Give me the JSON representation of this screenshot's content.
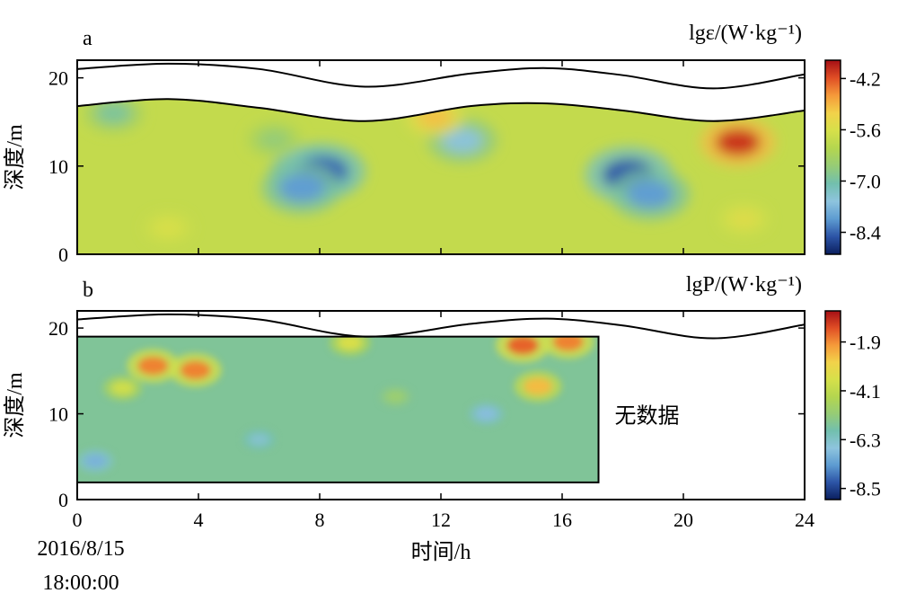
{
  "chart_data": [
    {
      "type": "heatmap",
      "panel_label": "a",
      "unit_label": "lgε/(W·kg⁻¹)",
      "ylabel": "深度/m",
      "xlim": [
        0,
        24
      ],
      "ylim": [
        0,
        22
      ],
      "xticks": [
        "0",
        "4",
        "8",
        "12",
        "16",
        "20",
        "24"
      ],
      "yticks": [
        "0",
        "10",
        "20"
      ],
      "colorbar": {
        "range": [
          -9,
          -3.7
        ],
        "ticks": [
          "-4.2",
          "-5.6",
          "-7.0",
          "-8.4"
        ],
        "tick_values": [
          -4.2,
          -5.6,
          -7.0,
          -8.4
        ]
      },
      "surface_elevation": {
        "x": [
          0,
          3,
          6,
          9.5,
          13,
          15.5,
          18,
          21,
          24
        ],
        "y": [
          21,
          21.6,
          21,
          19,
          20.5,
          21.1,
          20.3,
          18.8,
          20.4
        ]
      },
      "bottom_boundary": {
        "x": [
          0,
          3,
          6,
          9.5,
          13,
          15.5,
          18,
          21,
          24
        ],
        "y": [
          16.8,
          17.6,
          16.6,
          15.1,
          16.8,
          17.1,
          16.3,
          15.1,
          16.3
        ]
      },
      "background_value": -5.9,
      "features": [
        {
          "x": 7.7,
          "y": 9,
          "value": -8.2
        },
        {
          "x": 8.1,
          "y": 9.4,
          "value": -8.4
        },
        {
          "x": 7.4,
          "y": 7.5,
          "value": -8.0
        },
        {
          "x": 18.2,
          "y": 9,
          "value": -8.5
        },
        {
          "x": 18.9,
          "y": 6.8,
          "value": -8.0
        },
        {
          "x": 21.8,
          "y": 12.7,
          "value": -4.0
        },
        {
          "x": 12.7,
          "y": 12.9,
          "value": -7.5
        },
        {
          "x": 1.2,
          "y": 16,
          "value": -6.9
        },
        {
          "x": 11.8,
          "y": 15.5,
          "value": -5.0
        },
        {
          "x": 6.5,
          "y": 13,
          "value": -6.6
        },
        {
          "x": 22,
          "y": 4,
          "value": -5.5
        },
        {
          "x": 3,
          "y": 3,
          "value": -5.6
        }
      ]
    },
    {
      "type": "heatmap",
      "panel_label": "b",
      "unit_label": "lgP/(W·kg⁻¹)",
      "ylabel": "深度/m",
      "xlabel": "时间/h",
      "xlim": [
        0,
        24
      ],
      "ylim": [
        0,
        22
      ],
      "xticks": [
        "0",
        "4",
        "8",
        "12",
        "16",
        "20",
        "24"
      ],
      "yticks": [
        "0",
        "10",
        "20"
      ],
      "colorbar": {
        "range": [
          -9,
          -0.5
        ],
        "ticks": [
          "-1.9",
          "-4.1",
          "-6.3",
          "-8.5"
        ],
        "tick_values": [
          -1.9,
          -4.1,
          -6.3,
          -8.5
        ]
      },
      "surface_elevation": {
        "x": [
          0,
          3,
          6,
          9.5,
          13,
          15.5,
          18,
          21,
          24
        ],
        "y": [
          21,
          21.6,
          21,
          19,
          20.5,
          21.1,
          20.3,
          18.8,
          20.4
        ]
      },
      "data_extent": {
        "x": [
          0,
          17.2
        ],
        "y": [
          2,
          19
        ]
      },
      "no_data_text": "无数据",
      "background_value": -5.6,
      "features": [
        {
          "x": 2.5,
          "y": 15.6,
          "value": -1.8
        },
        {
          "x": 3.9,
          "y": 15.1,
          "value": -1.8
        },
        {
          "x": 15.2,
          "y": 13.2,
          "value": -2.5
        },
        {
          "x": 14.7,
          "y": 18,
          "value": -1.5
        },
        {
          "x": 16.2,
          "y": 18.4,
          "value": -1.8
        },
        {
          "x": 1.5,
          "y": 13,
          "value": -3.8
        },
        {
          "x": 9,
          "y": 18.3,
          "value": -3.5
        },
        {
          "x": 0.6,
          "y": 4.5,
          "value": -7.0
        },
        {
          "x": 13.5,
          "y": 10,
          "value": -6.8
        },
        {
          "x": 6,
          "y": 7,
          "value": -6.4
        },
        {
          "x": 10.5,
          "y": 12,
          "value": -5.0
        }
      ]
    }
  ],
  "time_origin": [
    "2016/8/15",
    "18:00:00"
  ]
}
